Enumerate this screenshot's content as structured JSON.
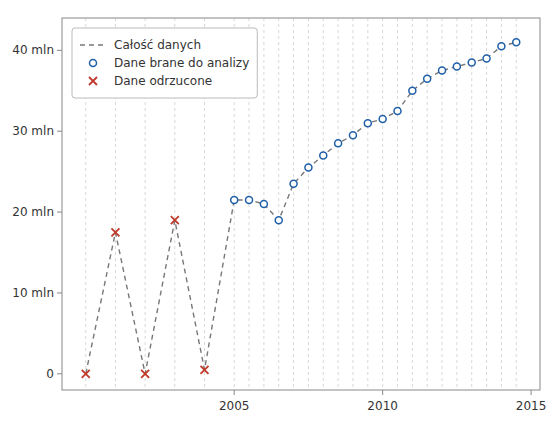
{
  "chart_data": {
    "type": "line",
    "xlim": [
      1999.2,
      2015.3
    ],
    "ylim": [
      -2,
      44
    ],
    "xticks": [
      2005,
      2010,
      2015
    ],
    "yticks": [
      0,
      {
        "value": 10,
        "label": "10 mln"
      },
      {
        "value": 20,
        "label": "20 mln"
      },
      {
        "value": 30,
        "label": "30 mln"
      },
      {
        "value": 40,
        "label": "40 mln"
      }
    ],
    "grid": "x",
    "legend": "upper left",
    "series": [
      {
        "name": "Całość danych",
        "type": "line",
        "line_style": "dashed",
        "x": [
          2000.0,
          2001.0,
          2002.0,
          2003.0,
          2004.0,
          2005.0,
          2005.5,
          2006.0,
          2006.5,
          2007.0,
          2007.5,
          2008.0,
          2008.5,
          2009.0,
          2009.5,
          2010.0,
          2010.5,
          2011.0,
          2011.5,
          2012.0,
          2012.5,
          2013.0,
          2013.5,
          2014.0,
          2014.5
        ],
        "values": [
          0.0,
          17.5,
          0.0,
          19.0,
          0.5,
          21.5,
          21.5,
          21.0,
          19.0,
          23.5,
          25.5,
          27.0,
          28.5,
          29.5,
          31.0,
          31.5,
          32.5,
          35.0,
          36.5,
          37.5,
          38.0,
          38.5,
          39.0,
          40.5,
          41.0
        ]
      },
      {
        "name": "Dane brane do analizy",
        "type": "scatter",
        "marker": "circle",
        "x": [
          2005.0,
          2005.5,
          2006.0,
          2006.5,
          2007.0,
          2007.5,
          2008.0,
          2008.5,
          2009.0,
          2009.5,
          2010.0,
          2010.5,
          2011.0,
          2011.5,
          2012.0,
          2012.5,
          2013.0,
          2013.5,
          2014.0,
          2014.5
        ],
        "values": [
          21.5,
          21.5,
          21.0,
          19.0,
          23.5,
          25.5,
          27.0,
          28.5,
          29.5,
          31.0,
          31.5,
          32.5,
          35.0,
          36.5,
          37.5,
          38.0,
          38.5,
          39.0,
          40.5,
          41.0
        ]
      },
      {
        "name": "Dane odrzucone",
        "type": "scatter",
        "marker": "x",
        "x": [
          2000.0,
          2001.0,
          2002.0,
          2003.0,
          2004.0
        ],
        "values": [
          0.0,
          17.5,
          0.0,
          19.0,
          0.5
        ]
      }
    ]
  }
}
